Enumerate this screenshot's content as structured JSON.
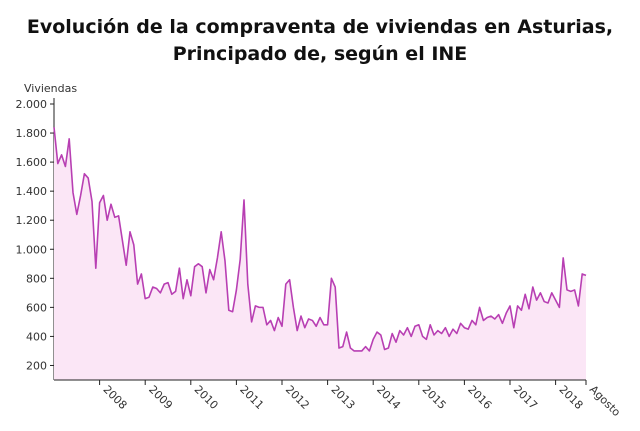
{
  "title_line1": "Evolución de la compraventa de viviendas en Asturias,",
  "title_line2": "Principado de, según el INE",
  "colors": {
    "line": "#b83fb3",
    "area": "#fbe6f6",
    "axis": "#222222",
    "grid": "#dddddd"
  },
  "chart_data": {
    "type": "area",
    "title": "Evolución de la compraventa de viviendas en Asturias, Principado de, según el INE",
    "ylabel": "Viviendas",
    "xlabel": "",
    "ylim": [
      100,
      2000
    ],
    "y_ticks": [
      200,
      400,
      600,
      800,
      1000,
      1200,
      1400,
      1600,
      1800,
      2000
    ],
    "y_tick_labels": [
      "200",
      "400",
      "600",
      "800",
      "1.000",
      "1.200",
      "1.400",
      "1.600",
      "1.800",
      "2.000"
    ],
    "x_tick_labels": [
      "2008",
      "2009",
      "2010",
      "2011",
      "2012",
      "2013",
      "2014",
      "2015",
      "2016",
      "2017",
      "2018",
      "Agosto"
    ],
    "x_start": "2007-01",
    "x_end": "2018-08",
    "grid": false,
    "series": [
      {
        "name": "",
        "values": [
          1840,
          1590,
          1650,
          1570,
          1760,
          1390,
          1240,
          1370,
          1520,
          1490,
          1330,
          870,
          1320,
          1370,
          1200,
          1310,
          1220,
          1230,
          1060,
          890,
          1120,
          1030,
          760,
          830,
          660,
          670,
          740,
          730,
          700,
          760,
          770,
          690,
          710,
          870,
          660,
          790,
          680,
          880,
          900,
          880,
          700,
          860,
          790,
          940,
          1120,
          920,
          580,
          570,
          720,
          930,
          1340,
          760,
          500,
          610,
          600,
          600,
          480,
          510,
          440,
          530,
          470,
          760,
          790,
          600,
          440,
          540,
          460,
          520,
          510,
          470,
          530,
          480,
          480,
          800,
          740,
          320,
          330,
          430,
          320,
          300,
          300,
          300,
          330,
          300,
          380,
          430,
          410,
          310,
          320,
          420,
          360,
          440,
          410,
          460,
          400,
          470,
          480,
          400,
          380,
          480,
          410,
          440,
          420,
          460,
          400,
          450,
          420,
          490,
          460,
          450,
          510,
          480,
          600,
          510,
          530,
          540,
          520,
          550,
          490,
          560,
          610,
          460,
          610,
          580,
          690,
          590,
          740,
          650,
          700,
          640,
          630,
          700,
          650,
          600,
          940,
          720,
          710,
          720,
          610,
          830,
          820
        ]
      }
    ]
  }
}
